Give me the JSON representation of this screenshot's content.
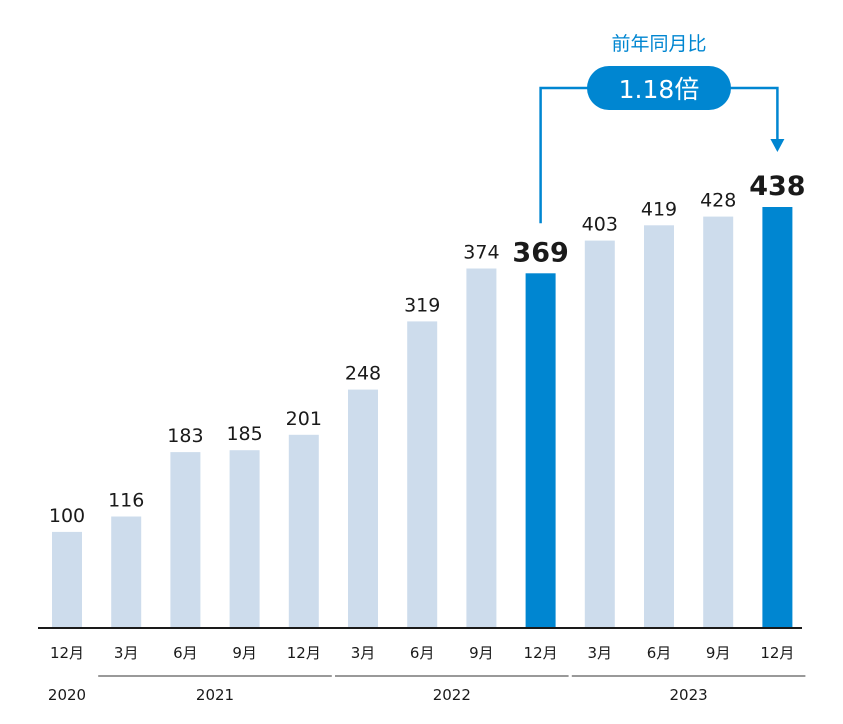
{
  "chart_data": {
    "type": "bar",
    "categories": [
      "12月",
      "3月",
      "6月",
      "9月",
      "12月",
      "3月",
      "6月",
      "9月",
      "12月",
      "3月",
      "6月",
      "9月",
      "12月"
    ],
    "values": [
      100,
      116,
      183,
      185,
      201,
      248,
      319,
      374,
      369,
      403,
      419,
      428,
      438
    ],
    "value_labels": [
      "100",
      "116",
      "183",
      "185",
      "201",
      "248",
      "319",
      "374",
      "369",
      "403",
      "419",
      "428",
      "438"
    ],
    "highlighted": [
      8,
      12
    ],
    "years": [
      {
        "label": "2020",
        "start": 0,
        "end": 0
      },
      {
        "label": "2021",
        "start": 1,
        "end": 4
      },
      {
        "label": "2022",
        "start": 5,
        "end": 8
      },
      {
        "label": "2023",
        "start": 9,
        "end": 12
      }
    ],
    "ylim": [
      0,
      438
    ],
    "grid": false,
    "annotation": {
      "title": "前年同月比",
      "value": "1.18倍",
      "from_index": 8,
      "to_index": 12
    },
    "colors": {
      "bar": "#cddcec",
      "highlight": "#0086d1",
      "annotation": "#0086d1",
      "axis": "#1a1a1a"
    }
  }
}
